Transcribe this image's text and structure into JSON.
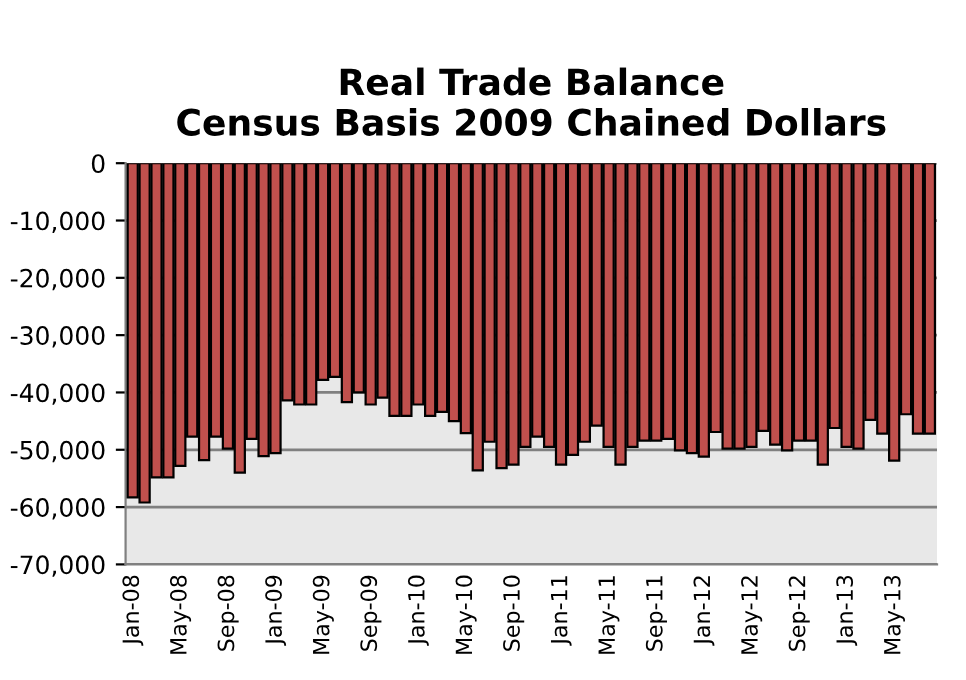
{
  "chart_data": {
    "type": "bar",
    "title": "Real Trade Balance\nCensus Basis 2009 Chained Dollars",
    "categories": [
      "Jan-08",
      null,
      null,
      null,
      "May-08",
      null,
      null,
      null,
      "Sep-08",
      null,
      null,
      null,
      "Jan-09",
      null,
      null,
      null,
      "May-09",
      null,
      null,
      null,
      "Sep-09",
      null,
      null,
      null,
      "Jan-10",
      null,
      null,
      null,
      "May-10",
      null,
      null,
      null,
      "Sep-10",
      null,
      null,
      null,
      "Jan-11",
      null,
      null,
      null,
      "May-11",
      null,
      null,
      null,
      "Sep-11",
      null,
      null,
      null,
      "Jan-12",
      null,
      null,
      null,
      "May-12",
      null,
      null,
      null,
      "Sep-12",
      null,
      null,
      null,
      "Jan-13",
      null,
      null,
      null,
      "May-13",
      null,
      null,
      null
    ],
    "values": [
      -58300,
      -59200,
      -54800,
      -54800,
      -52800,
      -47700,
      -51800,
      -47700,
      -49800,
      -54000,
      -48100,
      -51100,
      -50600,
      -41400,
      -42100,
      -42100,
      -37800,
      -37300,
      -41700,
      -40000,
      -42100,
      -40900,
      -44100,
      -44100,
      -42100,
      -44100,
      -43400,
      -45000,
      -47100,
      -53600,
      -48600,
      -53200,
      -52600,
      -49500,
      -47700,
      -49500,
      -52600,
      -50900,
      -48600,
      -45800,
      -49500,
      -52600,
      -49500,
      -48400,
      -48400,
      -48100,
      -50100,
      -50600,
      -51200,
      -46900,
      -49800,
      -49800,
      -49500,
      -46700,
      -49100,
      -50100,
      -48400,
      -48400,
      -52600,
      -46200,
      -49500,
      -49800,
      -44800,
      -47200,
      -51900,
      -43800,
      -47200,
      -47200
    ],
    "color": "#c0504d",
    "ylim": [
      -70000,
      0
    ],
    "yticks": [
      {
        "value": -70000,
        "label": "-70,000"
      },
      {
        "value": -60000,
        "label": "-60,000"
      },
      {
        "value": -50000,
        "label": "-50,000"
      },
      {
        "value": -40000,
        "label": "-40,000"
      },
      {
        "value": -30000,
        "label": "-30,000"
      },
      {
        "value": -20000,
        "label": "-20,000"
      },
      {
        "value": -10000,
        "label": "-10,000"
      },
      0
    ],
    "grid": "y"
  }
}
